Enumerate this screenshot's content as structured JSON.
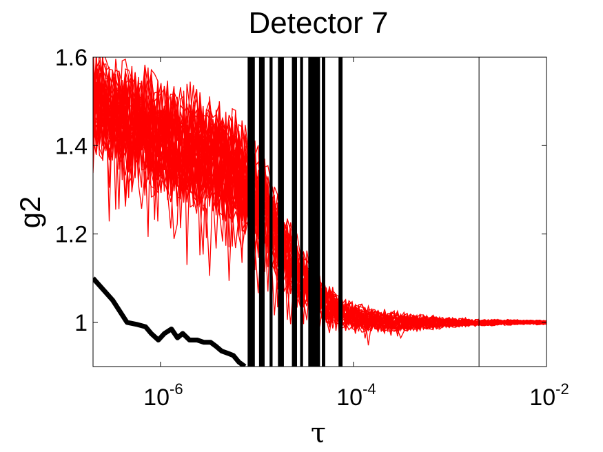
{
  "chart_data": {
    "type": "line",
    "title": "Detector 7",
    "xlabel": "τ",
    "ylabel": "g2",
    "x_scale": "log",
    "xlim": [
      2e-07,
      0.01
    ],
    "ylim": [
      0.9,
      1.6
    ],
    "x_ticks": [
      {
        "value": 1e-06,
        "base": "10",
        "exp": "-6"
      },
      {
        "value": 0.0001,
        "base": "10",
        "exp": "-4"
      },
      {
        "value": 0.01,
        "base": "10",
        "exp": "-2"
      }
    ],
    "y_ticks": [
      {
        "value": 1.0,
        "label": "1"
      },
      {
        "value": 1.2,
        "label": "1.2"
      },
      {
        "value": 1.4,
        "label": "1.4"
      },
      {
        "value": 1.6,
        "label": "1.6"
      }
    ],
    "grid": false,
    "series_color": "#ff0000",
    "reference_color": "#000000",
    "red_series_count": 40,
    "black_curve": {
      "x": [
        2e-07,
        3.2e-07,
        4.5e-07,
        5.8e-07,
        7e-07,
        8e-07,
        9.5e-07,
        1.1e-06,
        1.3e-06,
        1.5e-06,
        1.7e-06,
        2e-06,
        2.4e-06,
        2.8e-06,
        3.3e-06,
        3.8e-06,
        4.3e-06,
        5e-06,
        5.7e-06,
        6.5e-06,
        7.5e-06
      ],
      "y": [
        1.1,
        1.05,
        1.0,
        0.995,
        0.99,
        0.975,
        0.96,
        0.975,
        0.985,
        0.965,
        0.975,
        0.96,
        0.96,
        0.955,
        0.955,
        0.945,
        0.935,
        0.93,
        0.925,
        0.91,
        0.9
      ]
    },
    "black_bars": {
      "x_ranges": [
        [
          8e-06,
          9.5e-06
        ],
        [
          1.05e-05,
          1.2e-05
        ],
        [
          1.35e-05,
          1.45e-05
        ],
        [
          1.65e-05,
          1.9e-05
        ],
        [
          2.3e-05,
          2.6e-05
        ],
        [
          2.8e-05,
          3e-05
        ],
        [
          3.4e-05,
          4.5e-05
        ],
        [
          4.7e-05,
          5.1e-05
        ],
        [
          7e-05,
          7.7e-05
        ]
      ],
      "y_range": [
        0.9,
        1.6
      ]
    },
    "vertical_line_x": 0.002,
    "red_envelope": {
      "x": [
        2e-07,
        3e-07,
        5e-07,
        8e-07,
        1e-06,
        1.5e-06,
        2e-06,
        3e-06,
        5e-06,
        8e-06,
        1.2e-05,
        2e-05,
        3e-05,
        5e-05,
        8e-05,
        0.00012,
        0.0002,
        0.0004,
        0.0007,
        0.001,
        0.002,
        0.005,
        0.01
      ],
      "center": [
        1.5,
        1.48,
        1.46,
        1.43,
        1.42,
        1.41,
        1.4,
        1.38,
        1.36,
        1.32,
        1.26,
        1.16,
        1.1,
        1.05,
        1.02,
        1.01,
        1.005,
        1.0,
        1.0,
        1.0,
        1.0,
        1.0,
        1.0
      ],
      "spread": [
        0.12,
        0.12,
        0.13,
        0.14,
        0.14,
        0.14,
        0.14,
        0.13,
        0.13,
        0.12,
        0.11,
        0.09,
        0.07,
        0.05,
        0.035,
        0.03,
        0.025,
        0.02,
        0.015,
        0.012,
        0.008,
        0.006,
        0.005
      ]
    }
  }
}
